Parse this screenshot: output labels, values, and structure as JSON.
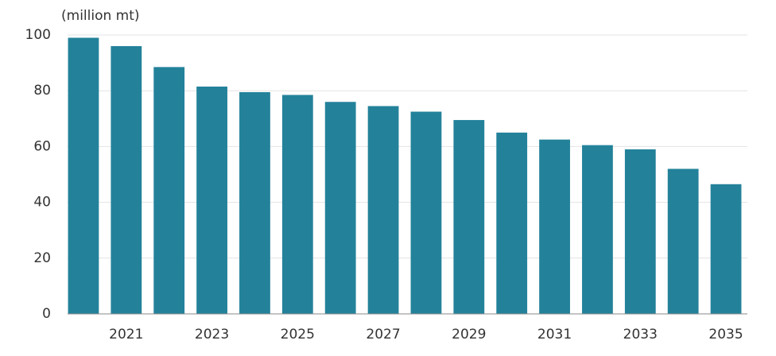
{
  "chart_data": {
    "type": "bar",
    "ylabel": "(million mt)",
    "categories": [
      null,
      "2021",
      null,
      "2023",
      null,
      "2025",
      null,
      "2027",
      null,
      "2029",
      null,
      "2031",
      null,
      "2033",
      null,
      "2035"
    ],
    "values": [
      99,
      96,
      88.5,
      81.5,
      79.5,
      78.5,
      76,
      74.5,
      72.5,
      69.5,
      65,
      62.5,
      60.5,
      59,
      52,
      46.5
    ],
    "color": "#23829a",
    "ylim": [
      0,
      100
    ],
    "yticks": [
      0,
      20,
      40,
      60,
      80,
      100
    ],
    "grid": true
  }
}
